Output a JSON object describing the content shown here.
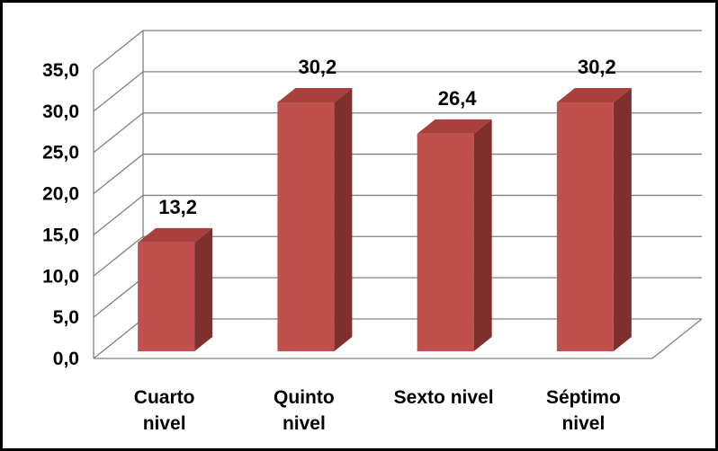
{
  "chart_data": {
    "type": "bar",
    "style": "3d-column",
    "categories": [
      [
        "Cuarto",
        "nivel"
      ],
      [
        "Quinto",
        "nivel"
      ],
      [
        "Sexto nivel"
      ],
      [
        "Séptimo",
        "nivel"
      ]
    ],
    "values": [
      13.2,
      30.2,
      26.4,
      30.2
    ],
    "data_labels": [
      "13,2",
      "30,2",
      "26,4",
      "30,2"
    ],
    "ylim": [
      0,
      35
    ],
    "yticks": [
      "0,0",
      "5,0",
      "10,0",
      "15,0",
      "20,0",
      "25,0",
      "30,0",
      "35,0"
    ],
    "grid": true,
    "legend": "none",
    "colors": {
      "bar_front": "#C0504D",
      "bar_side": "#7F2F2C",
      "bar_top": "#A8403D",
      "gridline": "#808080"
    }
  }
}
